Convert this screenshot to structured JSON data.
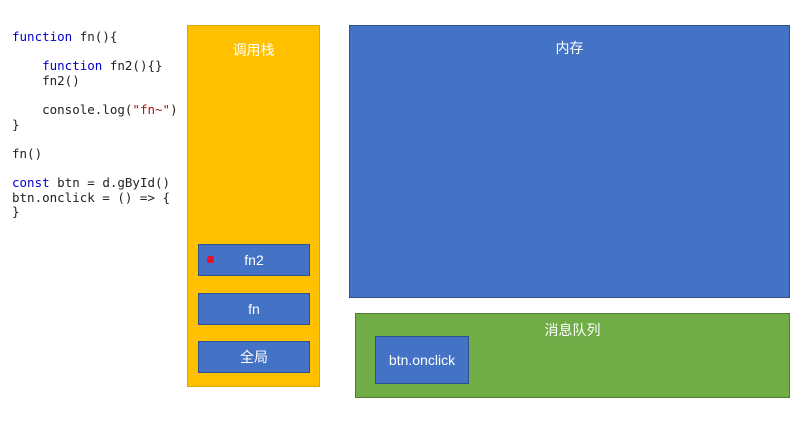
{
  "code": {
    "lines": [
      [
        {
          "t": "function",
          "k": "kw"
        },
        {
          "t": " fn(){"
        }
      ],
      [],
      [
        {
          "t": "    "
        },
        {
          "t": "function",
          "k": "kw"
        },
        {
          "t": " fn2(){}"
        }
      ],
      [
        {
          "t": "    fn2()"
        }
      ],
      [],
      [
        {
          "t": "    console.log("
        },
        {
          "t": "\"fn~\"",
          "k": "str"
        },
        {
          "t": ")"
        }
      ],
      [
        {
          "t": "}"
        }
      ],
      [],
      [
        {
          "t": "fn()"
        }
      ],
      [],
      [
        {
          "t": "const",
          "k": "kw"
        },
        {
          "t": " btn = d.gById()"
        }
      ],
      [
        {
          "t": "btn.onclick = () => {"
        }
      ],
      [
        {
          "t": "}"
        }
      ]
    ]
  },
  "call_stack": {
    "title": "调用栈",
    "frames": [
      "fn2",
      "fn",
      "全局"
    ]
  },
  "memory": {
    "title": "内存"
  },
  "message_queue": {
    "title": "消息队列",
    "tasks": [
      "btn.onclick"
    ]
  },
  "colors": {
    "call_stack": "#ffc000",
    "memory": "#4472c4",
    "message_queue": "#70ad47",
    "frame": "#4472c4",
    "keyword": "#0000cc",
    "string": "#a31515",
    "marker": "#e8102a"
  }
}
